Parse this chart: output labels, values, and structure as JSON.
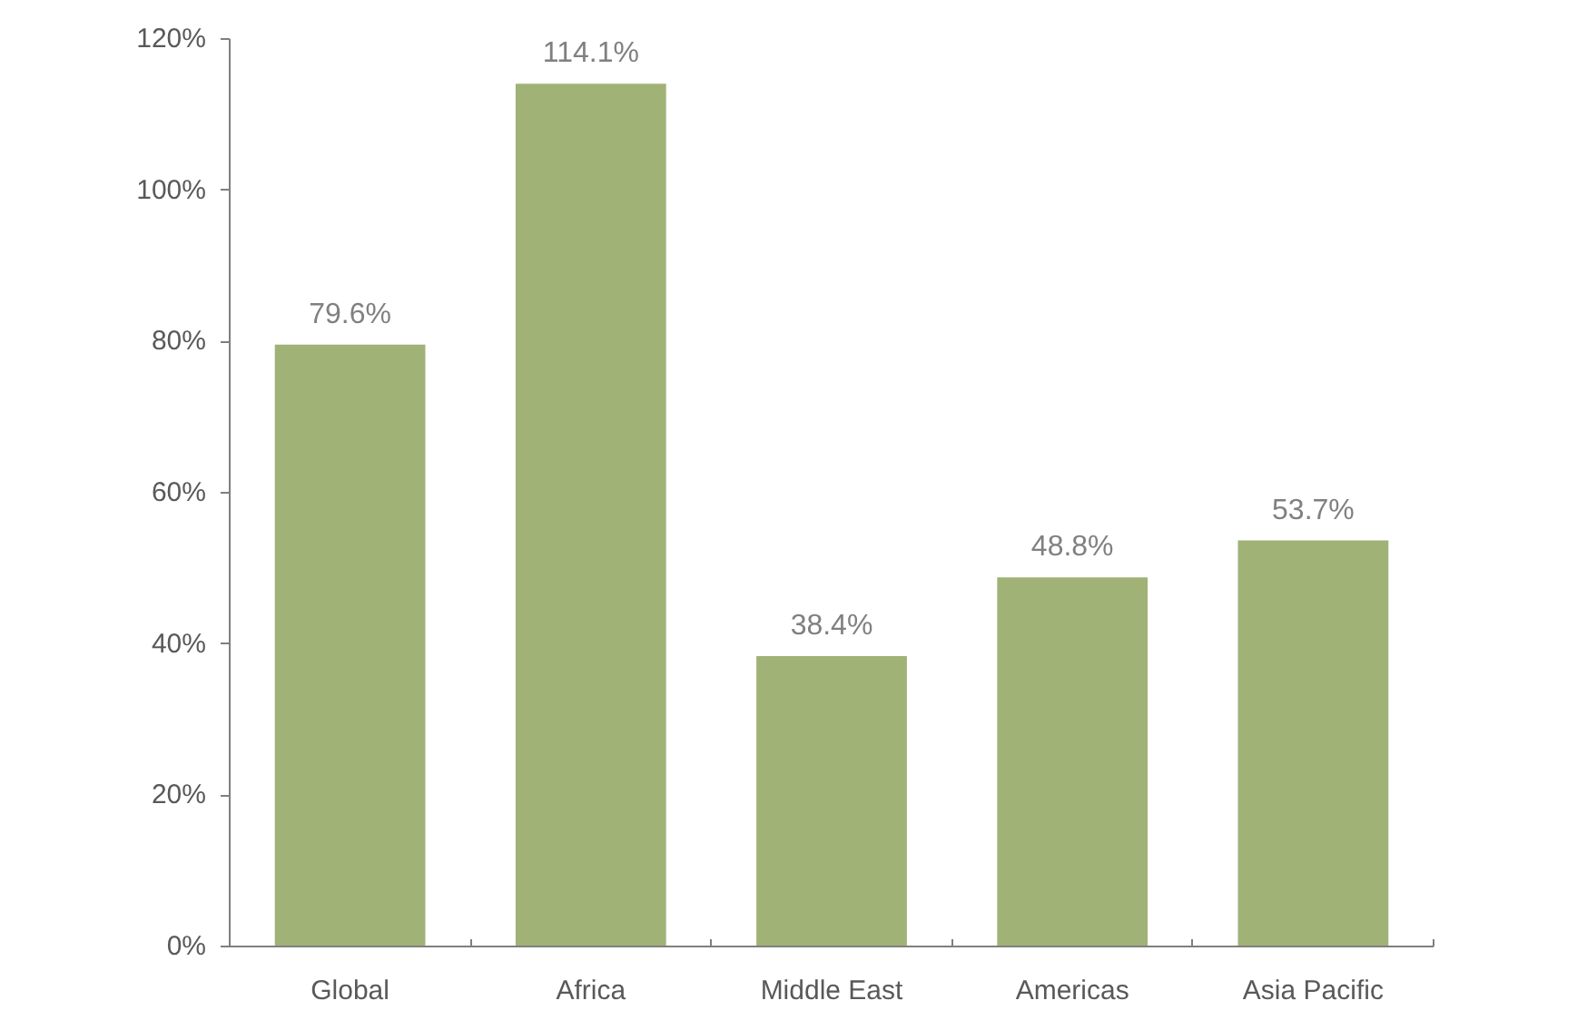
{
  "chart_data": {
    "type": "bar",
    "categories": [
      "Global",
      "Africa",
      "Middle East",
      "Americas",
      "Asia Pacific"
    ],
    "values": [
      79.6,
      114.1,
      38.4,
      48.8,
      53.7
    ],
    "value_labels": [
      "79.6%",
      "114.1%",
      "38.4%",
      "48.8%",
      "53.7%"
    ],
    "color": "#a0b276",
    "ylim": [
      0,
      120
    ],
    "yticks": [
      {
        "value": 0,
        "label": "0%"
      },
      {
        "value": 20,
        "label": "20%"
      },
      {
        "value": 40,
        "label": "40%"
      },
      {
        "value": 60,
        "label": "60%"
      },
      {
        "value": 80,
        "label": "80%"
      },
      {
        "value": 100,
        "label": "100%"
      },
      {
        "value": 120,
        "label": "120%"
      }
    ]
  }
}
